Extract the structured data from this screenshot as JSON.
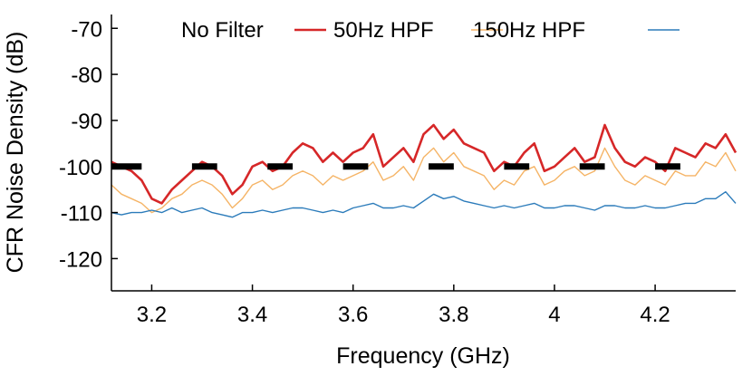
{
  "chart_data": {
    "type": "line",
    "title": "",
    "xlabel": "Frequency (GHz)",
    "ylabel": "CFR Noise Density (dB)",
    "xlim": [
      3.12,
      4.36
    ],
    "ylim": [
      -127,
      -67
    ],
    "x_ticks": [
      3.2,
      3.4,
      3.6,
      3.8,
      4.0,
      4.2
    ],
    "x_tick_labels": [
      "3.2",
      "3.4",
      "3.6",
      "3.8",
      "4",
      "4.2"
    ],
    "y_ticks": [
      -70,
      -80,
      -90,
      -100,
      -110,
      -120
    ],
    "y_tick_labels": [
      "-70",
      "-80",
      "-90",
      "-100",
      "-110",
      "-120"
    ],
    "grid": false,
    "legend_position": "top",
    "legend": [
      "No Filter",
      "50Hz HPF",
      "150Hz HPF"
    ],
    "series": [
      {
        "name": "No Filter",
        "color": "#d62728",
        "stroke_width": 2.6,
        "x": [
          3.12,
          3.14,
          3.16,
          3.18,
          3.2,
          3.22,
          3.24,
          3.26,
          3.28,
          3.3,
          3.32,
          3.34,
          3.36,
          3.38,
          3.4,
          3.42,
          3.44,
          3.46,
          3.48,
          3.5,
          3.52,
          3.54,
          3.56,
          3.58,
          3.6,
          3.62,
          3.64,
          3.66,
          3.68,
          3.7,
          3.72,
          3.74,
          3.76,
          3.78,
          3.8,
          3.82,
          3.84,
          3.86,
          3.88,
          3.9,
          3.92,
          3.94,
          3.96,
          3.98,
          4.0,
          4.02,
          4.04,
          4.06,
          4.08,
          4.1,
          4.12,
          4.14,
          4.16,
          4.18,
          4.2,
          4.22,
          4.24,
          4.26,
          4.28,
          4.3,
          4.32,
          4.34,
          4.36
        ],
        "y": [
          -99,
          -100,
          -101,
          -103,
          -107,
          -108,
          -105,
          -103,
          -101,
          -99,
          -100,
          -102,
          -106,
          -104,
          -100,
          -99,
          -101,
          -100,
          -97,
          -95,
          -96,
          -99,
          -97,
          -99,
          -97,
          -96,
          -93,
          -100,
          -98,
          -96,
          -99,
          -93,
          -91,
          -94,
          -92,
          -95,
          -96,
          -97,
          -101,
          -99,
          -100,
          -97,
          -95,
          -101,
          -100,
          -98,
          -96,
          -99,
          -98,
          -91,
          -96,
          -99,
          -100,
          -98,
          -99,
          -101,
          -96,
          -97,
          -98,
          -95,
          -96,
          -93,
          -97
        ]
      },
      {
        "name": "50Hz HPF",
        "color": "#f5b466",
        "stroke_width": 1.4,
        "x": [
          3.12,
          3.14,
          3.16,
          3.18,
          3.2,
          3.22,
          3.24,
          3.26,
          3.28,
          3.3,
          3.32,
          3.34,
          3.36,
          3.38,
          3.4,
          3.42,
          3.44,
          3.46,
          3.48,
          3.5,
          3.52,
          3.54,
          3.56,
          3.58,
          3.6,
          3.62,
          3.64,
          3.66,
          3.68,
          3.7,
          3.72,
          3.74,
          3.76,
          3.78,
          3.8,
          3.82,
          3.84,
          3.86,
          3.88,
          3.9,
          3.92,
          3.94,
          3.96,
          3.98,
          4.0,
          4.02,
          4.04,
          4.06,
          4.08,
          4.1,
          4.12,
          4.14,
          4.16,
          4.18,
          4.2,
          4.22,
          4.24,
          4.26,
          4.28,
          4.3,
          4.32,
          4.34,
          4.36
        ],
        "y": [
          -104,
          -106,
          -107,
          -108,
          -110,
          -109,
          -107,
          -106,
          -104,
          -103,
          -104,
          -106,
          -109,
          -107,
          -104,
          -103,
          -105,
          -104,
          -102,
          -101,
          -102,
          -104,
          -102,
          -103,
          -102,
          -101,
          -99,
          -103,
          -102,
          -100,
          -103,
          -98,
          -96,
          -99,
          -97,
          -100,
          -101,
          -102,
          -105,
          -103,
          -104,
          -101,
          -100,
          -104,
          -103,
          -101,
          -100,
          -102,
          -101,
          -96,
          -100,
          -103,
          -104,
          -102,
          -103,
          -104,
          -101,
          -102,
          -102,
          -99,
          -100,
          -97,
          -101
        ]
      },
      {
        "name": "150Hz HPF",
        "color": "#2b7bba",
        "stroke_width": 1.4,
        "x": [
          3.12,
          3.14,
          3.16,
          3.18,
          3.2,
          3.22,
          3.24,
          3.26,
          3.28,
          3.3,
          3.32,
          3.34,
          3.36,
          3.38,
          3.4,
          3.42,
          3.44,
          3.46,
          3.48,
          3.5,
          3.52,
          3.54,
          3.56,
          3.58,
          3.6,
          3.62,
          3.64,
          3.66,
          3.68,
          3.7,
          3.72,
          3.74,
          3.76,
          3.78,
          3.8,
          3.82,
          3.84,
          3.86,
          3.88,
          3.9,
          3.92,
          3.94,
          3.96,
          3.98,
          4.0,
          4.02,
          4.04,
          4.06,
          4.08,
          4.1,
          4.12,
          4.14,
          4.16,
          4.18,
          4.2,
          4.22,
          4.24,
          4.26,
          4.28,
          4.3,
          4.32,
          4.34,
          4.36
        ],
        "y": [
          -110,
          -110.5,
          -110,
          -110,
          -109.5,
          -110,
          -109,
          -110,
          -109.5,
          -109,
          -110,
          -110.5,
          -111,
          -110,
          -110,
          -109.5,
          -110,
          -109.5,
          -109,
          -109,
          -109.5,
          -110,
          -109.5,
          -110,
          -109,
          -108.5,
          -108,
          -109,
          -109,
          -108.5,
          -109,
          -107.5,
          -106,
          -107,
          -106.5,
          -107.5,
          -108,
          -108.5,
          -109,
          -108.5,
          -109,
          -108.5,
          -108,
          -109,
          -109,
          -108.5,
          -108.5,
          -109,
          -109.5,
          -108.5,
          -108.5,
          -109,
          -109,
          -108.5,
          -109,
          -109,
          -108.5,
          -108,
          -108,
          -107,
          -107,
          -105.5,
          -108
        ]
      }
    ],
    "markers": {
      "color": "#000000",
      "y": -100,
      "segments": [
        [
          3.12,
          3.18
        ],
        [
          3.28,
          3.33
        ],
        [
          3.43,
          3.48
        ],
        [
          3.58,
          3.63
        ],
        [
          3.75,
          3.8
        ],
        [
          3.9,
          3.95
        ],
        [
          4.05,
          4.1
        ],
        [
          4.2,
          4.25
        ]
      ]
    }
  }
}
